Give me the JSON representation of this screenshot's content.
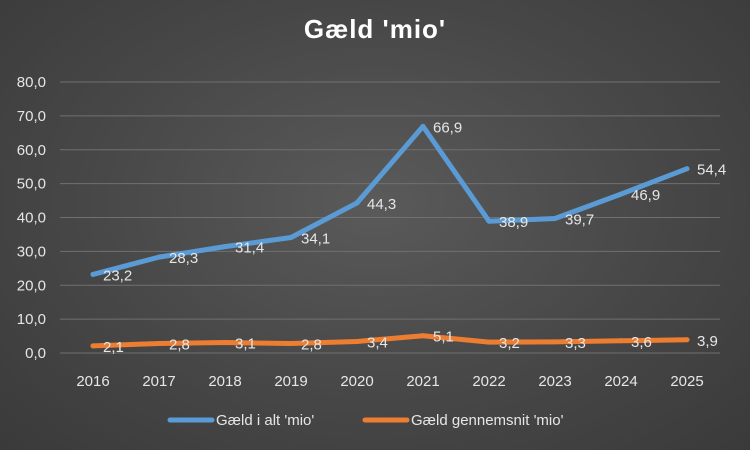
{
  "chart_data": {
    "type": "line",
    "title": "Gæld 'mio'",
    "xlabel": "",
    "ylabel": "",
    "categories": [
      "2016",
      "2017",
      "2018",
      "2019",
      "2020",
      "2021",
      "2022",
      "2023",
      "2024",
      "2025"
    ],
    "ylim": [
      0,
      80
    ],
    "yticks": [
      0,
      10,
      20,
      30,
      40,
      50,
      60,
      70,
      80
    ],
    "ytick_labels": [
      "0,0",
      "10,0",
      "20,0",
      "30,0",
      "40,0",
      "50,0",
      "60,0",
      "70,0",
      "80,0"
    ],
    "grid": true,
    "legend_position": "bottom",
    "series": [
      {
        "name": "Gæld i alt 'mio'",
        "color": "#5b9bd5",
        "values": [
          23.2,
          28.3,
          31.4,
          34.1,
          44.3,
          66.9,
          38.9,
          39.7,
          46.9,
          54.4
        ],
        "labels": [
          "23,2",
          "28,3",
          "31,4",
          "34,1",
          "44,3",
          "66,9",
          "38,9",
          "39,7",
          "46,9",
          "54,4"
        ]
      },
      {
        "name": "Gæld gennemsnit 'mio'",
        "color": "#ed7d31",
        "values": [
          2.1,
          2.8,
          3.1,
          2.8,
          3.4,
          5.1,
          3.2,
          3.3,
          3.6,
          3.9
        ],
        "labels": [
          "2,1",
          "2,8",
          "3,1",
          "2,8",
          "3,4",
          "5,1",
          "3,2",
          "3,3",
          "3,6",
          "3,9"
        ]
      }
    ]
  }
}
